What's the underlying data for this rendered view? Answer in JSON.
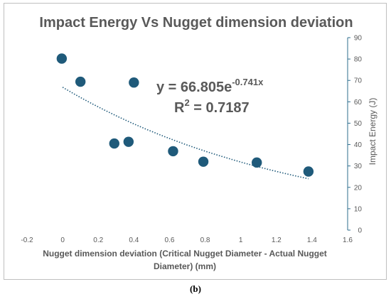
{
  "caption": "(b)",
  "chart_data": {
    "type": "scatter",
    "title": "Impact Energy Vs Nugget dimension deviation",
    "xlabel_lines": [
      "Nugget dimension deviation (Critical Nugget Diameter - Actual Nugget",
      "Diameter) (mm)"
    ],
    "ylabel": "Impact Energy (J)",
    "xlim": [
      -0.2,
      1.6
    ],
    "ylim": [
      0,
      90
    ],
    "x_ticks": [
      "-0.2",
      "0",
      "0.2",
      "0.4",
      "0.6",
      "0.8",
      "1",
      "1.2",
      "1.4",
      "1.6"
    ],
    "y_ticks": [
      "0",
      "10",
      "20",
      "30",
      "40",
      "50",
      "60",
      "70",
      "80",
      "90"
    ],
    "grid": false,
    "y_axis_side": "right",
    "points": [
      {
        "x": -0.005,
        "y": 80.2
      },
      {
        "x": 0.1,
        "y": 69.4
      },
      {
        "x": 0.29,
        "y": 40.5
      },
      {
        "x": 0.37,
        "y": 41.3
      },
      {
        "x": 0.4,
        "y": 69.0
      },
      {
        "x": 0.62,
        "y": 36.9
      },
      {
        "x": 0.79,
        "y": 32.0
      },
      {
        "x": 1.09,
        "y": 31.6
      },
      {
        "x": 1.38,
        "y": 27.4
      }
    ],
    "trendline": {
      "type": "exponential",
      "a": 66.805,
      "b": -0.741,
      "x_range": [
        0,
        1.38
      ]
    },
    "equation": {
      "text": "y = 66.805e",
      "exponent": "-0.741x"
    },
    "r_squared": {
      "label": "R",
      "power": "2",
      "text": " = 0.7187"
    },
    "colors": {
      "marker": "#1f5a7a",
      "trendline": "#1f5a7a",
      "axis": "#2e6e8e",
      "title": "#595959",
      "text": "#595959"
    }
  }
}
